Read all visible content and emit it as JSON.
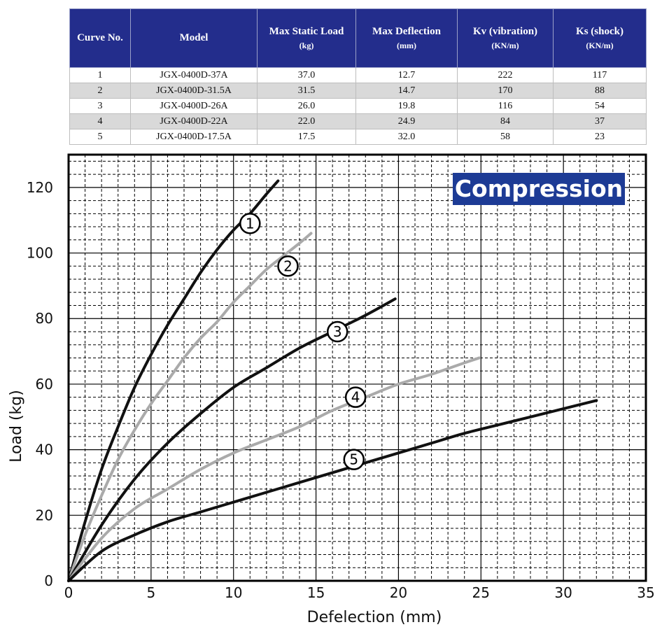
{
  "table": {
    "headers": [
      {
        "title": "Curve No.",
        "unit": ""
      },
      {
        "title": "Model",
        "unit": ""
      },
      {
        "title": "Max Static Load",
        "unit": "(kg)"
      },
      {
        "title": "Max Deflection",
        "unit": "(mm)"
      },
      {
        "title": "Kv (vibration)",
        "unit": "(KN/m)"
      },
      {
        "title": "Ks (shock)",
        "unit": "(KN/m)"
      }
    ],
    "rows": [
      [
        "1",
        "JGX-0400D-37A",
        "37.0",
        "12.7",
        "222",
        "117"
      ],
      [
        "2",
        "JGX-0400D-31.5A",
        "31.5",
        "14.7",
        "170",
        "88"
      ],
      [
        "3",
        "JGX-0400D-26A",
        "26.0",
        "19.8",
        "116",
        "54"
      ],
      [
        "4",
        "JGX-0400D-22A",
        "22.0",
        "24.9",
        "84",
        "37"
      ],
      [
        "5",
        "JGX-0400D-17.5A",
        "17.5",
        "32.0",
        "58",
        "23"
      ]
    ],
    "header_color": "#232d8c",
    "alt_row_color": "#d9d9d9"
  },
  "chart_data": {
    "type": "line",
    "title": "Compression",
    "xlabel": "Defelection (mm)",
    "ylabel": "Load (kg)",
    "xlim": [
      0,
      35
    ],
    "ylim": [
      0,
      130
    ],
    "xticks": [
      "0",
      "5",
      "10",
      "15",
      "20",
      "25",
      "30",
      "35"
    ],
    "yticks": [
      "0",
      "20",
      "40",
      "60",
      "80",
      "100",
      "120"
    ],
    "grid": true,
    "title_box_color": "#1d3b95",
    "series": [
      {
        "name": "1",
        "color": "#111111",
        "label_at": [
          11.0,
          109
        ],
        "points": [
          [
            0,
            0
          ],
          [
            1,
            18
          ],
          [
            2,
            34
          ],
          [
            3,
            47
          ],
          [
            4,
            59
          ],
          [
            5,
            69
          ],
          [
            6,
            78
          ],
          [
            7,
            86
          ],
          [
            8,
            94
          ],
          [
            9,
            101
          ],
          [
            10,
            107
          ],
          [
            11,
            112
          ],
          [
            12,
            118
          ],
          [
            12.7,
            122
          ]
        ]
      },
      {
        "name": "2",
        "color": "#aaaaaa",
        "label_at": [
          13.3,
          96
        ],
        "points": [
          [
            0,
            0
          ],
          [
            1,
            14
          ],
          [
            2,
            26
          ],
          [
            3,
            37
          ],
          [
            4,
            46
          ],
          [
            5,
            54
          ],
          [
            6,
            61
          ],
          [
            7,
            68
          ],
          [
            8,
            74
          ],
          [
            9,
            79
          ],
          [
            10,
            85
          ],
          [
            11,
            90
          ],
          [
            12,
            95
          ],
          [
            13,
            99
          ],
          [
            14,
            103
          ],
          [
            14.7,
            106
          ]
        ]
      },
      {
        "name": "3",
        "color": "#111111",
        "label_at": [
          16.3,
          76
        ],
        "points": [
          [
            0,
            0
          ],
          [
            2,
            17
          ],
          [
            4,
            31
          ],
          [
            6,
            42
          ],
          [
            8,
            51
          ],
          [
            10,
            59
          ],
          [
            12,
            65
          ],
          [
            14,
            71
          ],
          [
            16,
            76
          ],
          [
            18,
            81
          ],
          [
            19.8,
            86
          ]
        ]
      },
      {
        "name": "4",
        "color": "#aaaaaa",
        "label_at": [
          17.4,
          56
        ],
        "points": [
          [
            0,
            0
          ],
          [
            2,
            13
          ],
          [
            4,
            22
          ],
          [
            6,
            28
          ],
          [
            8,
            34
          ],
          [
            10,
            39
          ],
          [
            12,
            43
          ],
          [
            14,
            47
          ],
          [
            16,
            52
          ],
          [
            18,
            56
          ],
          [
            20,
            60
          ],
          [
            22,
            63
          ],
          [
            24,
            66.5
          ],
          [
            24.9,
            68
          ]
        ]
      },
      {
        "name": "5",
        "color": "#111111",
        "label_at": [
          17.3,
          37
        ],
        "points": [
          [
            0,
            0
          ],
          [
            2,
            9
          ],
          [
            4,
            14
          ],
          [
            6,
            18
          ],
          [
            8,
            21
          ],
          [
            10,
            24
          ],
          [
            12,
            27
          ],
          [
            14,
            30
          ],
          [
            16,
            33
          ],
          [
            18,
            36
          ],
          [
            20,
            39
          ],
          [
            22,
            42
          ],
          [
            24,
            45
          ],
          [
            26,
            47.5
          ],
          [
            28,
            50
          ],
          [
            30,
            52.5
          ],
          [
            32,
            55
          ]
        ]
      }
    ]
  }
}
